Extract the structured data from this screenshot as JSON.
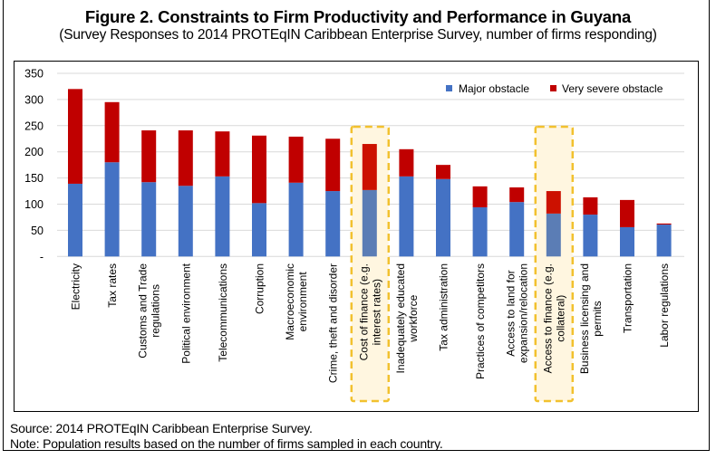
{
  "chart_data": {
    "type": "bar",
    "stacked": true,
    "title": "Figure 2. Constraints to Firm Productivity and Performance in Guyana",
    "subtitle": "(Survey Responses to 2014 PROTEqIN Caribbean Enterprise Survey, number of firms responding)",
    "xlabel": "",
    "ylabel": "",
    "ylim": [
      0,
      350
    ],
    "yticks": [
      0,
      50,
      100,
      150,
      200,
      250,
      300,
      350
    ],
    "ytick_labels": [
      "-",
      "50",
      "100",
      "150",
      "200",
      "250",
      "300",
      "350"
    ],
    "grid": true,
    "legend_position": "top-right",
    "categories": [
      [
        "Electricity"
      ],
      [
        "Tax rates"
      ],
      [
        "Customs and Trade",
        "regulations"
      ],
      [
        "Political environment"
      ],
      [
        "Telecommunications"
      ],
      [
        "Corruption"
      ],
      [
        "Macroeconomic",
        "environment"
      ],
      [
        "Crime, theft and disorder"
      ],
      [
        "Cost of finance (e.g.",
        "interest rates)"
      ],
      [
        "Inadequately educated",
        "workforce"
      ],
      [
        "Tax administration"
      ],
      [
        "Practices of competitors"
      ],
      [
        "Access to land for",
        "expansion/relocation"
      ],
      [
        "Access to finance (e.g.",
        "collateral)"
      ],
      [
        "Business licensing and",
        "permits"
      ],
      [
        "Transportation"
      ],
      [
        "Labor regulations"
      ]
    ],
    "highlighted_categories": [
      8,
      13
    ],
    "series": [
      {
        "name": "Major obstacle",
        "color": "#4472C4",
        "values": [
          139,
          180,
          142,
          135,
          153,
          102,
          141,
          125,
          127,
          153,
          148,
          94,
          104,
          82,
          80,
          56,
          61
        ]
      },
      {
        "name": "Very severe obstacle",
        "color": "#C00000",
        "values": [
          181,
          115,
          99,
          106,
          86,
          129,
          88,
          100,
          88,
          52,
          27,
          40,
          28,
          43,
          33,
          52,
          2
        ]
      }
    ]
  },
  "colors": {
    "highlight_border": "#F2C12E",
    "highlight_fill": "#FFF6E0",
    "highlight_major": "#5B7DB5",
    "highlight_severe": "#CC1100",
    "grid": "#D9D9D9"
  },
  "footer": {
    "source": "Source: 2014 PROTEqIN Caribbean Enterprise Survey.",
    "note": "Note: Population results based on the number of firms sampled in each country."
  }
}
